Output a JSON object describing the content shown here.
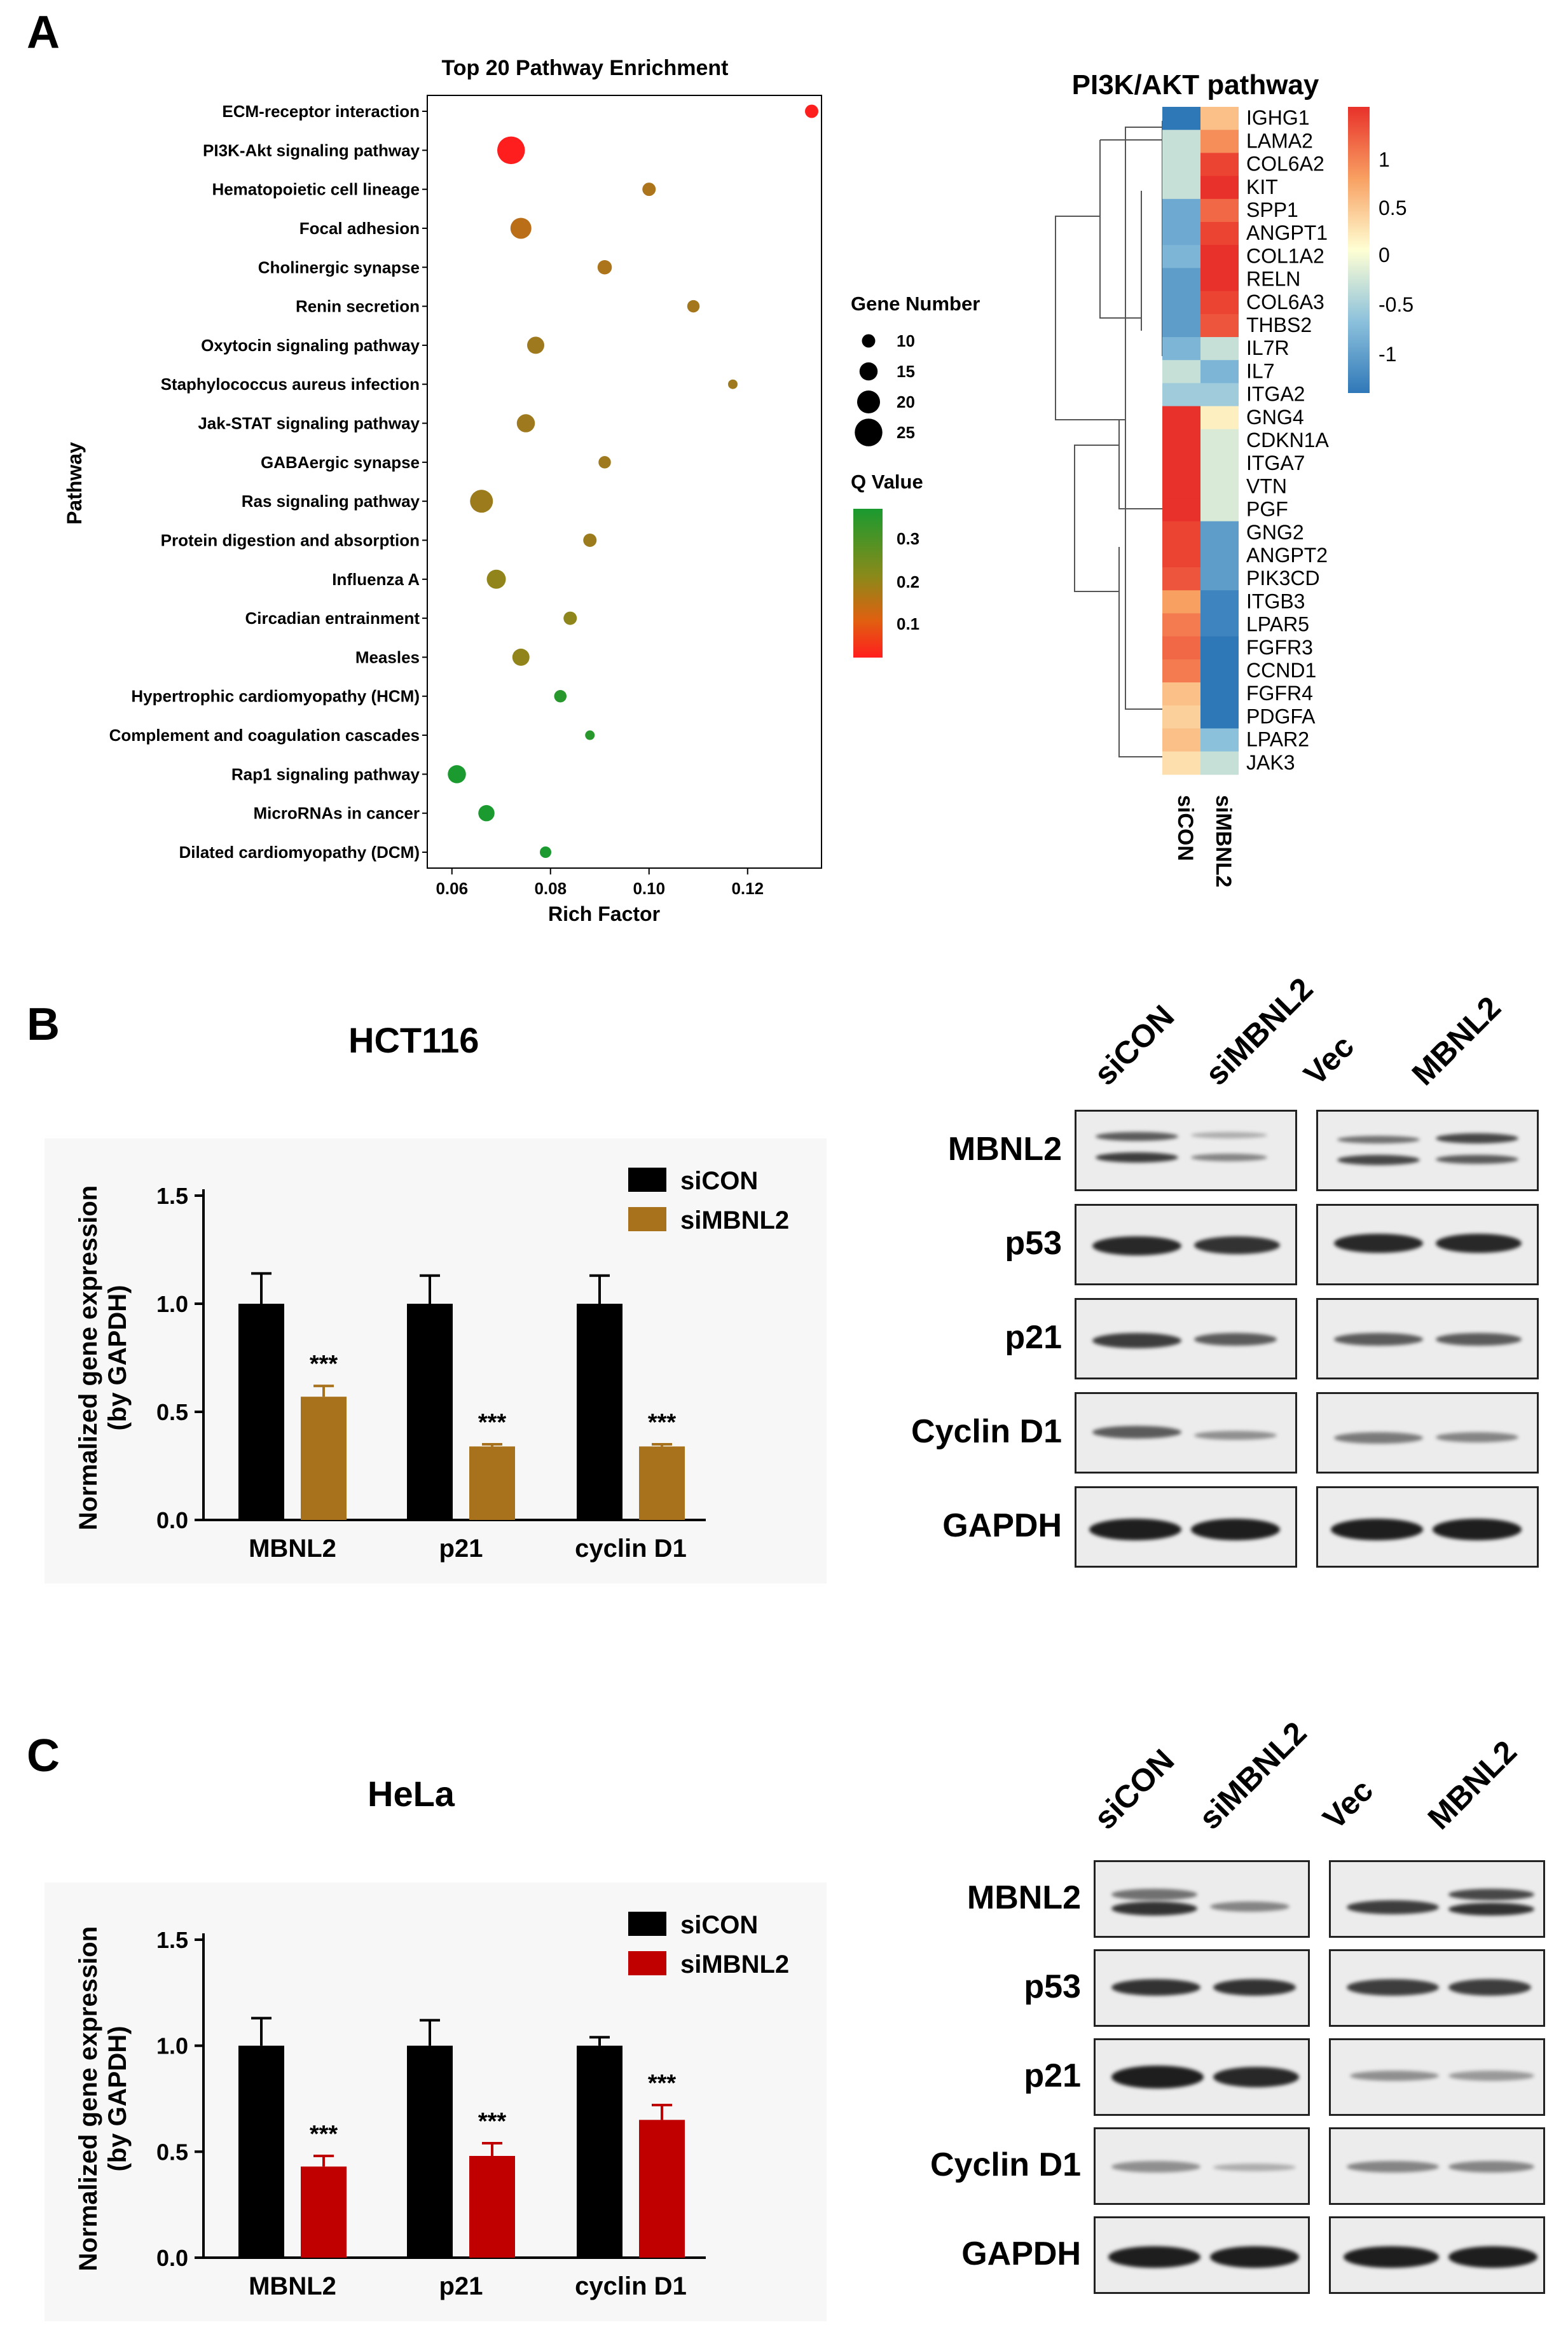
{
  "panels": {
    "a": "A",
    "b": "B",
    "c": "C"
  },
  "bubble": {
    "title": "Top 20 Pathway Enrichment",
    "ylabel": "Pathway",
    "xlabel": "Rich Factor",
    "xticks": [
      "0.06",
      "0.08",
      "0.10",
      "0.12"
    ],
    "size_legend_title": "Gene Number",
    "size_legend": [
      "10",
      "15",
      "20",
      "25"
    ],
    "color_legend_title": "Q Value",
    "color_legend": [
      "0.3",
      "0.2",
      "0.1"
    ]
  },
  "heatmap": {
    "title": "PI3K/AKT pathway",
    "genes": [
      "IGHG1",
      "LAMA2",
      "COL6A2",
      "KIT",
      "SPP1",
      "ANGPT1",
      "COL1A2",
      "RELN",
      "COL6A3",
      "THBS2",
      "IL7R",
      "IL7",
      "ITGA2",
      "GNG4",
      "CDKN1A",
      "ITGA7",
      "VTN",
      "PGF",
      "GNG2",
      "ANGPT2",
      "PIK3CD",
      "ITGB3",
      "LPAR5",
      "FGFR3",
      "CCND1",
      "FGFR4",
      "PDGFA",
      "LPAR2",
      "JAK3"
    ],
    "columns": [
      "siCON",
      "siMBNL2"
    ],
    "scale": [
      "1",
      "0.5",
      "0",
      "-0.5",
      "-1"
    ]
  },
  "panel_b": {
    "title": "HCT116",
    "ylabel_line1": "Normalized gene expression",
    "ylabel_line2": "(by GAPDH)",
    "yticks": [
      "0.0",
      "0.5",
      "1.0",
      "1.5"
    ],
    "legend": [
      "siCON",
      "siMBNL2"
    ],
    "sig": "***",
    "lanes": [
      "siCON",
      "siMBNL2",
      "Vec",
      "MBNL2"
    ],
    "blots": [
      "MBNL2",
      "p53",
      "p21",
      "Cyclin D1",
      "GAPDH"
    ]
  },
  "panel_c": {
    "title": "HeLa",
    "ylabel_line1": "Normalized gene expression",
    "ylabel_line2": "(by GAPDH)",
    "yticks": [
      "0.0",
      "0.5",
      "1.0",
      "1.5"
    ],
    "legend": [
      "siCON",
      "siMBNL2"
    ],
    "sig": "***",
    "lanes": [
      "siCON",
      "siMBNL2",
      "Vec",
      "MBNL2"
    ],
    "blots": [
      "MBNL2",
      "p53",
      "p21",
      "Cyclin D1",
      "GAPDH"
    ]
  },
  "colors": {
    "black": "#000000",
    "brown": "#a8721c",
    "red": "#c00000"
  },
  "chart_data": [
    {
      "type": "scatter",
      "title": "Top 20 Pathway Enrichment",
      "xlabel": "Rich Factor",
      "ylabel": "Pathway",
      "xlim": [
        0.055,
        0.135
      ],
      "categories": [
        "ECM-receptor interaction",
        "PI3K-Akt signaling pathway",
        "Hematopoietic cell lineage",
        "Focal adhesion",
        "Cholinergic synapse",
        "Renin secretion",
        "Oxytocin signaling pathway",
        "Staphylococcus aureus infection",
        "Jak-STAT signaling pathway",
        "GABAergic synapse",
        "Ras signaling pathway",
        "Protein digestion and absorption",
        "Influenza A",
        "Circadian entrainment",
        "Measles",
        "Hypertrophic cardiomyopathy (HCM)",
        "Complement and coagulation cascades",
        "Rap1 signaling pathway",
        "MicroRNAs in cancer",
        "Dilated cardiomyopathy (DCM)"
      ],
      "x": [
        0.133,
        0.072,
        0.1,
        0.074,
        0.091,
        0.109,
        0.077,
        0.117,
        0.075,
        0.091,
        0.066,
        0.088,
        0.069,
        0.084,
        0.074,
        0.082,
        0.088,
        0.061,
        0.067,
        0.079
      ],
      "gene_number": [
        10,
        25,
        10,
        18,
        11,
        9,
        14,
        6,
        15,
        9,
        20,
        10,
        16,
        10,
        14,
        9,
        6,
        15,
        13,
        8
      ],
      "q_value": [
        0.02,
        0.02,
        0.17,
        0.15,
        0.17,
        0.18,
        0.19,
        0.19,
        0.19,
        0.19,
        0.2,
        0.2,
        0.24,
        0.25,
        0.24,
        0.34,
        0.34,
        0.35,
        0.35,
        0.35
      ]
    },
    {
      "type": "heatmap",
      "title": "PI3K/AKT pathway",
      "columns": [
        "siCON",
        "siMBNL2"
      ],
      "rows": [
        "IGHG1",
        "LAMA2",
        "COL6A2",
        "KIT",
        "SPP1",
        "ANGPT1",
        "COL1A2",
        "RELN",
        "COL6A3",
        "THBS2",
        "IL7R",
        "IL7",
        "ITGA2",
        "GNG4",
        "CDKN1A",
        "ITGA7",
        "VTN",
        "PGF",
        "GNG2",
        "ANGPT2",
        "PIK3CD",
        "ITGB3",
        "LPAR5",
        "FGFR3",
        "CCND1",
        "FGFR4",
        "PDGFA",
        "LPAR2",
        "JAK3"
      ],
      "values": [
        [
          -1.2,
          0.4
        ],
        [
          -0.3,
          0.7
        ],
        [
          -0.3,
          1.1
        ],
        [
          -0.3,
          1.3
        ],
        [
          -0.8,
          0.9
        ],
        [
          -0.8,
          1.1
        ],
        [
          -0.7,
          1.2
        ],
        [
          -0.9,
          1.2
        ],
        [
          -0.9,
          1.1
        ],
        [
          -0.9,
          1.0
        ],
        [
          -0.7,
          -0.3
        ],
        [
          -0.3,
          -0.7
        ],
        [
          -0.5,
          -0.5
        ],
        [
          1.3,
          0.1
        ],
        [
          1.2,
          -0.2
        ],
        [
          1.3,
          -0.2
        ],
        [
          1.3,
          -0.2
        ],
        [
          1.3,
          -0.2
        ],
        [
          1.1,
          -0.9
        ],
        [
          1.1,
          -0.9
        ],
        [
          1.0,
          -0.9
        ],
        [
          0.6,
          -1.1
        ],
        [
          0.8,
          -1.1
        ],
        [
          0.9,
          -1.2
        ],
        [
          0.8,
          -1.3
        ],
        [
          0.4,
          -1.3
        ],
        [
          0.3,
          -1.2
        ],
        [
          0.4,
          -0.6
        ],
        [
          0.2,
          -0.3
        ]
      ],
      "scale_range": [
        -1.2,
        1.2
      ]
    },
    {
      "type": "bar",
      "title": "HCT116",
      "ylabel": "Normalized gene expression (by GAPDH)",
      "categories": [
        "MBNL2",
        "p21",
        "cyclin D1"
      ],
      "ylim": [
        0,
        1.5
      ],
      "series": [
        {
          "name": "siCON",
          "values": [
            1.0,
            1.0,
            1.0
          ],
          "errors": [
            0.14,
            0.13,
            0.13
          ]
        },
        {
          "name": "siMBNL2",
          "values": [
            0.57,
            0.34,
            0.34
          ],
          "errors": [
            0.05,
            0.01,
            0.01
          ]
        }
      ],
      "annotations": [
        "***",
        "***",
        "***"
      ]
    },
    {
      "type": "bar",
      "title": "HeLa",
      "ylabel": "Normalized gene expression (by GAPDH)",
      "categories": [
        "MBNL2",
        "p21",
        "cyclin D1"
      ],
      "ylim": [
        0,
        1.5
      ],
      "series": [
        {
          "name": "siCON",
          "values": [
            1.0,
            1.0,
            1.0
          ],
          "errors": [
            0.13,
            0.12,
            0.04
          ]
        },
        {
          "name": "siMBNL2",
          "values": [
            0.43,
            0.48,
            0.65
          ],
          "errors": [
            0.05,
            0.06,
            0.07
          ]
        }
      ],
      "annotations": [
        "***",
        "***",
        "***"
      ]
    }
  ]
}
